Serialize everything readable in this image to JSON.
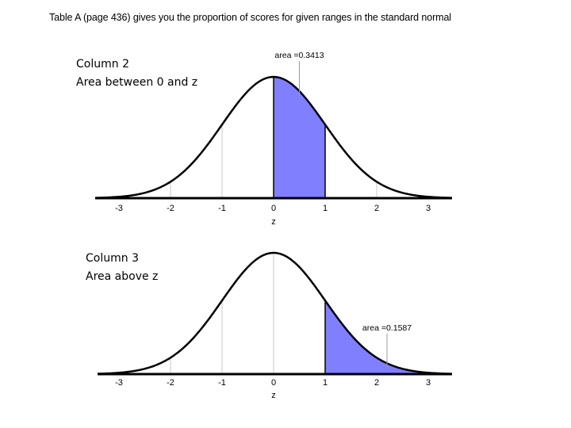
{
  "page": {
    "title": "Table A (page 436) gives you the proportion of scores for given ranges in the standard normal"
  },
  "panels": [
    {
      "label_line1": "Column 2",
      "label_line2": "Area between 0 and z",
      "annotation": "area =0.3413",
      "xlabel": "z"
    },
    {
      "label_line1": "Column 3",
      "label_line2": "Area above z",
      "annotation": "area =0.1587",
      "xlabel": "z"
    }
  ],
  "chart_data": [
    {
      "type": "area",
      "title": "Column 2 Area between 0 and z",
      "curve": "standard normal density",
      "xlabel": "z",
      "ylabel": "",
      "xlim": [
        -3.3,
        3.5
      ],
      "ticks": [
        -3,
        -2,
        -1,
        0,
        1,
        2,
        3
      ],
      "tick_labels": [
        "-3",
        "-2",
        "-1",
        "0",
        "1",
        "2",
        "3"
      ],
      "grid": true,
      "shaded_region": {
        "from": 0,
        "to": 1,
        "color": "#8080ff"
      },
      "annotation": {
        "text": "area =0.3413",
        "x": 0.5,
        "value": 0.3413
      }
    },
    {
      "type": "area",
      "title": "Column 3 Area above z",
      "curve": "standard normal density",
      "xlabel": "z",
      "ylabel": "",
      "xlim": [
        -3.3,
        3.5
      ],
      "ticks": [
        -3,
        -2,
        -1,
        0,
        1,
        2,
        3
      ],
      "tick_labels": [
        "-3",
        "-2",
        "-1",
        "0",
        "1",
        "2",
        "3"
      ],
      "grid": true,
      "shaded_region": {
        "from": 1,
        "to": 3.5,
        "color": "#8080ff"
      },
      "annotation": {
        "text": "area =0.1587",
        "x": 2.2,
        "value": 0.1587
      }
    }
  ],
  "colors": {
    "shade": "#8080ff",
    "curve": "#000000",
    "grid": "#c8c8c8"
  }
}
